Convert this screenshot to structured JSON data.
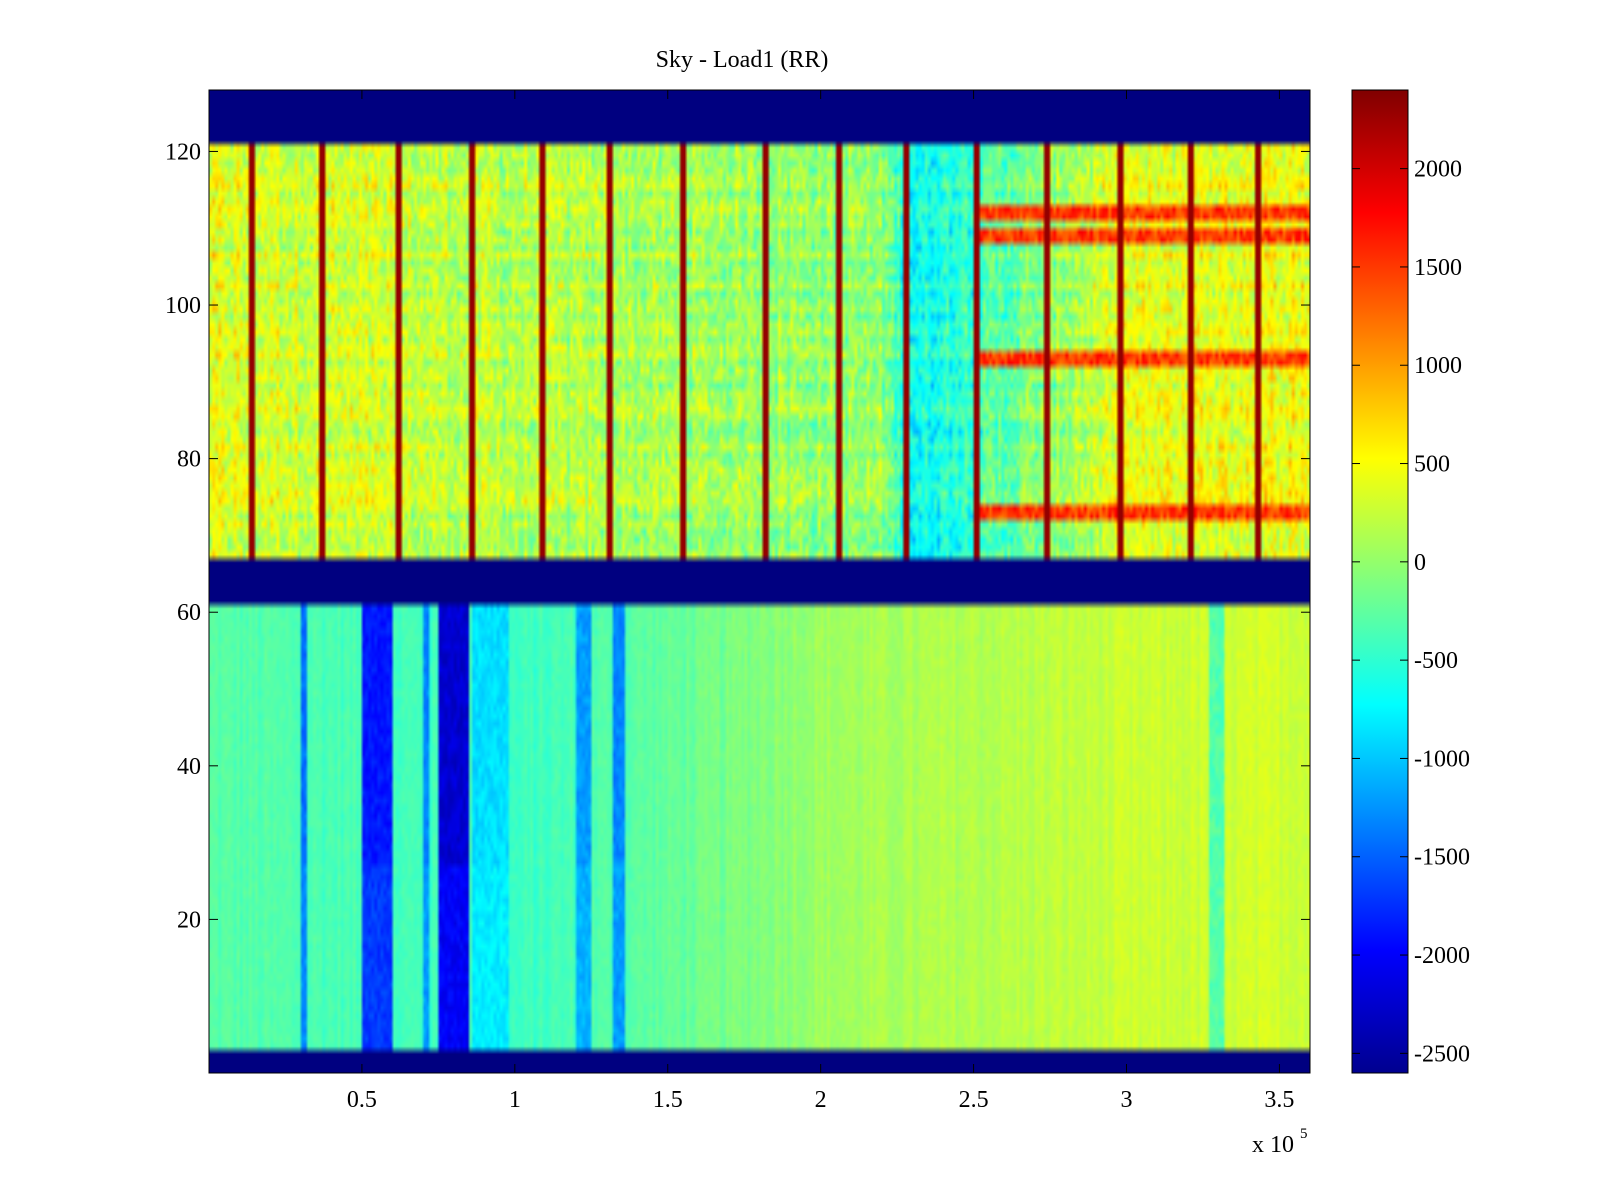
{
  "chart_data": {
    "type": "heatmap",
    "title": "Sky - Load1 (RR)",
    "xlabel": "",
    "ylabel": "",
    "x_multiplier_label": "x 10",
    "x_multiplier_exponent": "5",
    "xlim": [
      0,
      3.6
    ],
    "ylim": [
      0,
      128
    ],
    "x_ticks": [
      0.5,
      1,
      1.5,
      2,
      2.5,
      3,
      3.5
    ],
    "x_tick_labels": [
      "0.5",
      "1",
      "1.5",
      "2",
      "2.5",
      "3",
      "3.5"
    ],
    "y_ticks": [
      20,
      40,
      60,
      80,
      100,
      120
    ],
    "y_tick_labels": [
      "20",
      "40",
      "60",
      "80",
      "100",
      "120"
    ],
    "colormap": "jet",
    "clim": [
      -2600,
      2400
    ],
    "colorbar_ticks": [
      2000,
      1500,
      1000,
      500,
      0,
      -500,
      -1000,
      -1500,
      -2000,
      -2500
    ],
    "colorbar_tick_labels": [
      "2000",
      "1500",
      "1000",
      "500",
      "0",
      "-500",
      "-1000",
      "-1500",
      "-2000",
      "-2500"
    ],
    "masked_row_bands": [
      {
        "y_from": 0,
        "y_to": 3,
        "value": -2600
      },
      {
        "y_from": 61,
        "y_to": 67,
        "value": -2600
      },
      {
        "y_from": 121,
        "y_to": 128,
        "value": -2600
      }
    ],
    "lower_block": {
      "y_range": [
        3,
        61
      ],
      "baseline_trend": [
        {
          "x": 0,
          "value": -300
        },
        {
          "x": 1.0,
          "value": -450
        },
        {
          "x": 1.6,
          "value": -200
        },
        {
          "x": 2.0,
          "value": 50
        },
        {
          "x": 3.0,
          "value": 250
        },
        {
          "x": 3.6,
          "value": 300
        }
      ],
      "dips": [
        {
          "x_from": 0.3,
          "x_to": 0.32,
          "value": -1300
        },
        {
          "x_from": 0.5,
          "x_to": 0.6,
          "value": -1700
        },
        {
          "x_from": 0.7,
          "x_to": 0.72,
          "value": -1200
        },
        {
          "x_from": 0.75,
          "x_to": 0.85,
          "value": -2000
        },
        {
          "x_from": 0.86,
          "x_to": 0.98,
          "value": -800
        },
        {
          "x_from": 1.2,
          "x_to": 1.25,
          "value": -1100
        },
        {
          "x_from": 1.32,
          "x_to": 1.36,
          "value": -1200
        },
        {
          "x_from": 3.27,
          "x_to": 3.32,
          "value": -300
        }
      ]
    },
    "upper_block": {
      "y_range": [
        67,
        121
      ],
      "baseline_trend": [
        {
          "x": 0,
          "value": 400
        },
        {
          "x": 1.2,
          "value": 150
        },
        {
          "x": 2.2,
          "value": 0
        },
        {
          "x": 2.3,
          "value": -700
        },
        {
          "x": 2.5,
          "value": -400
        },
        {
          "x": 3.0,
          "value": 400
        },
        {
          "x": 3.6,
          "value": 500
        }
      ],
      "spike_columns_x": [
        0.14,
        0.37,
        0.62,
        0.86,
        1.09,
        1.31,
        1.55,
        1.82,
        2.06,
        2.28,
        2.51,
        2.74,
        2.98,
        3.21,
        3.43
      ],
      "spike_value": 2300,
      "hot_rows": [
        73,
        93,
        109,
        112
      ]
    }
  }
}
